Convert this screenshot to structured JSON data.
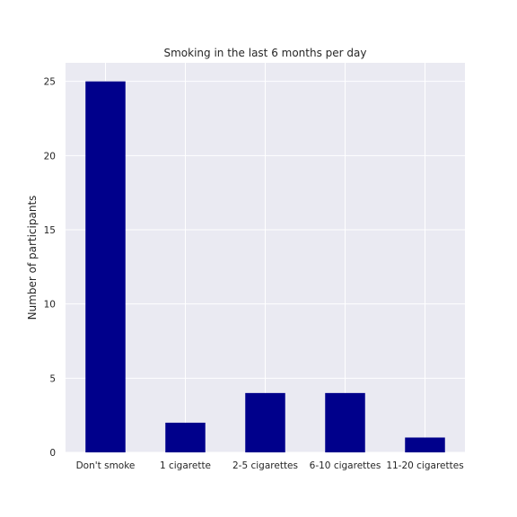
{
  "chart_data": {
    "type": "bar",
    "title": "Smoking in the last 6 months per day",
    "xlabel": "",
    "ylabel": "Number of participants",
    "categories": [
      "Don't smoke",
      "1 cigarette",
      "2-5 cigarettes",
      "6-10 cigarettes",
      "11-20 cigarettes"
    ],
    "values": [
      25,
      2,
      4,
      4,
      1
    ],
    "ylim": [
      0,
      26.25
    ],
    "yticks": [
      "0",
      "5",
      "10",
      "15",
      "20",
      "25"
    ],
    "grid": true,
    "colors": {
      "bar": "#00008b",
      "plot_bg": "#eaeaf2",
      "grid": "#ffffff"
    }
  }
}
